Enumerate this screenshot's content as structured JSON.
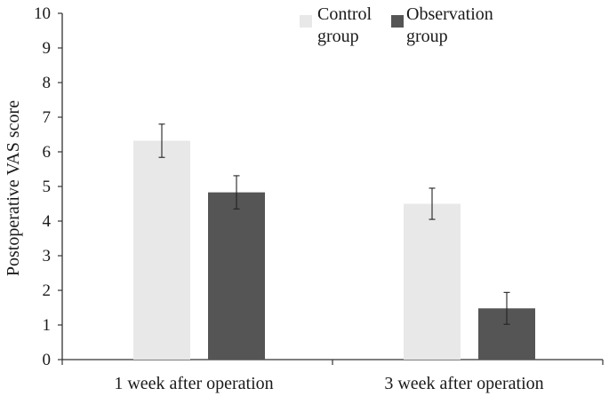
{
  "chart_data": {
    "type": "bar",
    "title": "",
    "xlabel": "",
    "ylabel": "Postoperative VAS score",
    "ylim": [
      0,
      10
    ],
    "yticks": [
      0,
      1,
      2,
      3,
      4,
      5,
      6,
      7,
      8,
      9,
      10
    ],
    "categories": [
      "1 week after operation",
      "3 week after operation"
    ],
    "series": [
      {
        "name": "Control group",
        "legend_lines": [
          "Control",
          "group"
        ],
        "color": "#e8e8e8",
        "values": [
          6.32,
          4.5
        ],
        "errors": [
          0.48,
          0.45
        ]
      },
      {
        "name": "Observation group",
        "legend_lines": [
          "Observation",
          "group"
        ],
        "color": "#555555",
        "values": [
          4.83,
          1.48
        ],
        "errors": [
          0.48,
          0.46
        ]
      }
    ],
    "grid": false,
    "legend_position": "top-right",
    "error_bars": true
  }
}
